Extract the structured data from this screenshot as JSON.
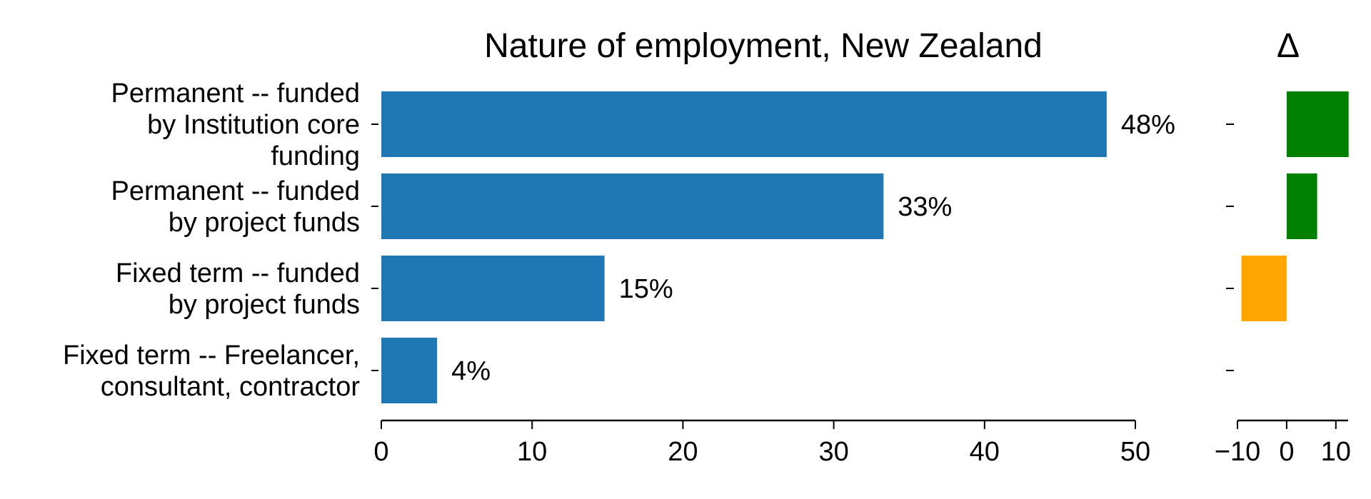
{
  "chart_data": [
    {
      "type": "bar",
      "orientation": "horizontal",
      "title": "Nature of employment, New Zealand",
      "categories": [
        "Permanent -- funded by Institution core funding",
        "Permanent -- funded by project funds",
        "Fixed term -- funded by project funds",
        "Fixed term -- Freelancer, consultant, contractor"
      ],
      "category_lines": [
        [
          "Permanent -- funded",
          "by Institution core",
          "funding"
        ],
        [
          "Permanent -- funded",
          "by project funds"
        ],
        [
          "Fixed term -- funded",
          "by project funds"
        ],
        [
          "Fixed term -- Freelancer,",
          "consultant, contractor"
        ]
      ],
      "values": [
        48.1,
        33.3,
        14.8,
        3.7
      ],
      "value_labels": [
        "48%",
        "33%",
        "15%",
        "4%"
      ],
      "xlim": [
        0,
        50
      ],
      "xticks": [
        "0",
        "10",
        "20",
        "30",
        "40",
        "50"
      ],
      "color": "#1f77b4"
    },
    {
      "type": "bar",
      "orientation": "horizontal",
      "title": "Δ",
      "values": [
        12.6,
        6.2,
        -9.2,
        0
      ],
      "xlim": [
        -10,
        12.5
      ],
      "xticks": [
        "−10",
        "0",
        "10"
      ],
      "xtick_values": [
        -10,
        0,
        10
      ],
      "colors": {
        "positive": "#008000",
        "negative": "#ffa500"
      }
    }
  ]
}
